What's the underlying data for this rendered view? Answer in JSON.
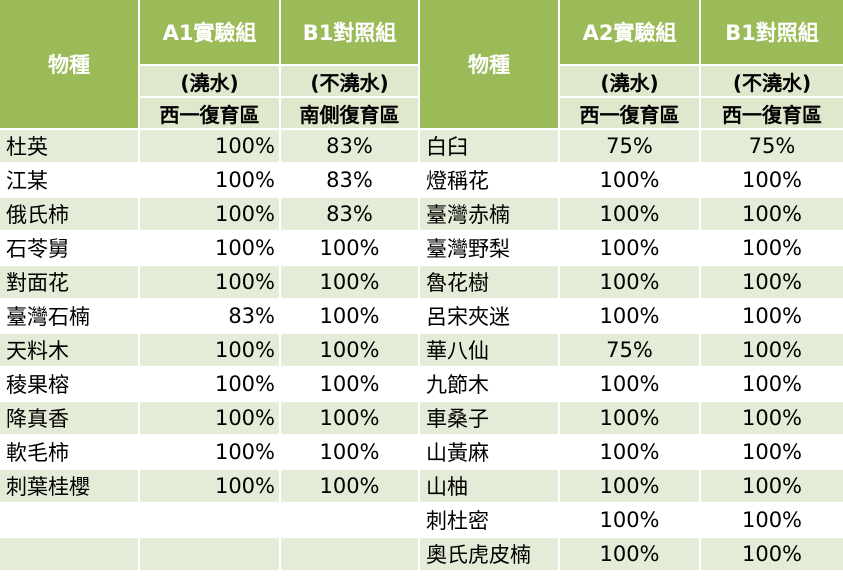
{
  "table": {
    "header": {
      "species_left": "物種",
      "species_right": "物種",
      "groups": [
        {
          "title": "A1實驗組",
          "treatment": "(澆水)",
          "site": "西一復育區"
        },
        {
          "title": "B1對照組",
          "treatment": "(不澆水)",
          "site": "南側復育區"
        },
        {
          "title": "A2實驗組",
          "treatment": "(澆水)",
          "site": "西一復育區"
        },
        {
          "title": "B1對照組",
          "treatment": "(不澆水)",
          "site": "西一復育區"
        }
      ]
    },
    "rows": [
      {
        "left_species": "杜英",
        "a1": "100%",
        "b1_south": "83%",
        "right_species": "白臼",
        "a2": "75%",
        "b1_west": "75%"
      },
      {
        "left_species": "江某",
        "a1": "100%",
        "b1_south": "83%",
        "right_species": "燈稱花",
        "a2": "100%",
        "b1_west": "100%"
      },
      {
        "left_species": "俄氏柿",
        "a1": "100%",
        "b1_south": "83%",
        "right_species": "臺灣赤楠",
        "a2": "100%",
        "b1_west": "100%"
      },
      {
        "left_species": "石苓舅",
        "a1": "100%",
        "b1_south": "100%",
        "right_species": "臺灣野梨",
        "a2": "100%",
        "b1_west": "100%"
      },
      {
        "left_species": "對面花",
        "a1": "100%",
        "b1_south": "100%",
        "right_species": "魯花樹",
        "a2": "100%",
        "b1_west": "100%"
      },
      {
        "left_species": "臺灣石楠",
        "a1": "83%",
        "b1_south": "100%",
        "right_species": "呂宋夾迷",
        "a2": "100%",
        "b1_west": "100%"
      },
      {
        "left_species": "天料木",
        "a1": "100%",
        "b1_south": "100%",
        "right_species": "華八仙",
        "a2": "75%",
        "b1_west": "100%"
      },
      {
        "left_species": "稜果榕",
        "a1": "100%",
        "b1_south": "100%",
        "right_species": "九節木",
        "a2": "100%",
        "b1_west": "100%"
      },
      {
        "left_species": "降真香",
        "a1": "100%",
        "b1_south": "100%",
        "right_species": "車桑子",
        "a2": "100%",
        "b1_west": "100%"
      },
      {
        "left_species": "軟毛柿",
        "a1": "100%",
        "b1_south": "100%",
        "right_species": "山黃麻",
        "a2": "100%",
        "b1_west": "100%"
      },
      {
        "left_species": "刺葉桂櫻",
        "a1": "100%",
        "b1_south": "100%",
        "right_species": "山柚",
        "a2": "100%",
        "b1_west": "100%"
      },
      {
        "left_species": "",
        "a1": "",
        "b1_south": "",
        "right_species": "刺杜密",
        "a2": "100%",
        "b1_west": "100%"
      },
      {
        "left_species": "",
        "a1": "",
        "b1_south": "",
        "right_species": "奧氏虎皮楠",
        "a2": "100%",
        "b1_west": "100%"
      }
    ]
  }
}
